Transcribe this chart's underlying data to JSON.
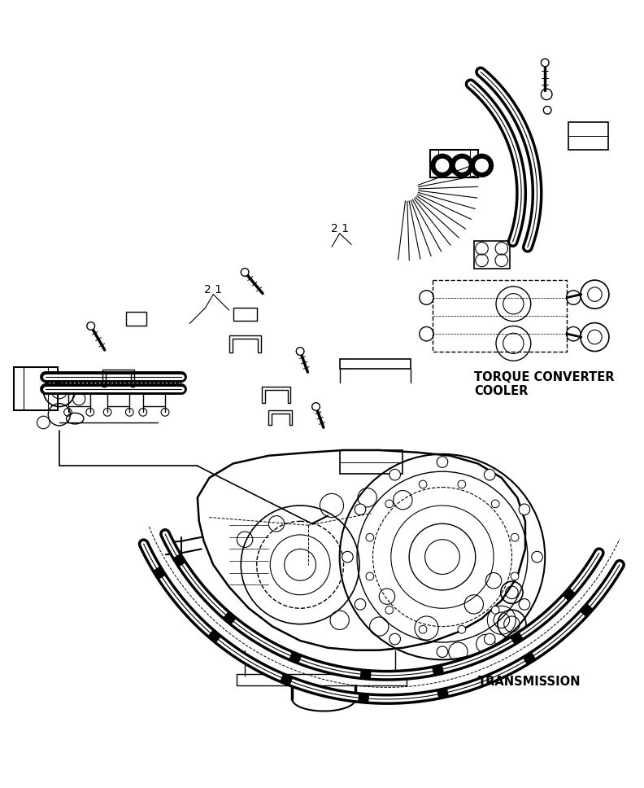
{
  "figure_width": 7.92,
  "figure_height": 9.68,
  "dpi": 100,
  "bg_color": "#ffffff",
  "label_torque_converter": "TORQUE CONVERTER\nCOOLER",
  "label_transmission": "TRANSMISSION",
  "label_21_a": "2 1",
  "label_21_b": "2 1"
}
